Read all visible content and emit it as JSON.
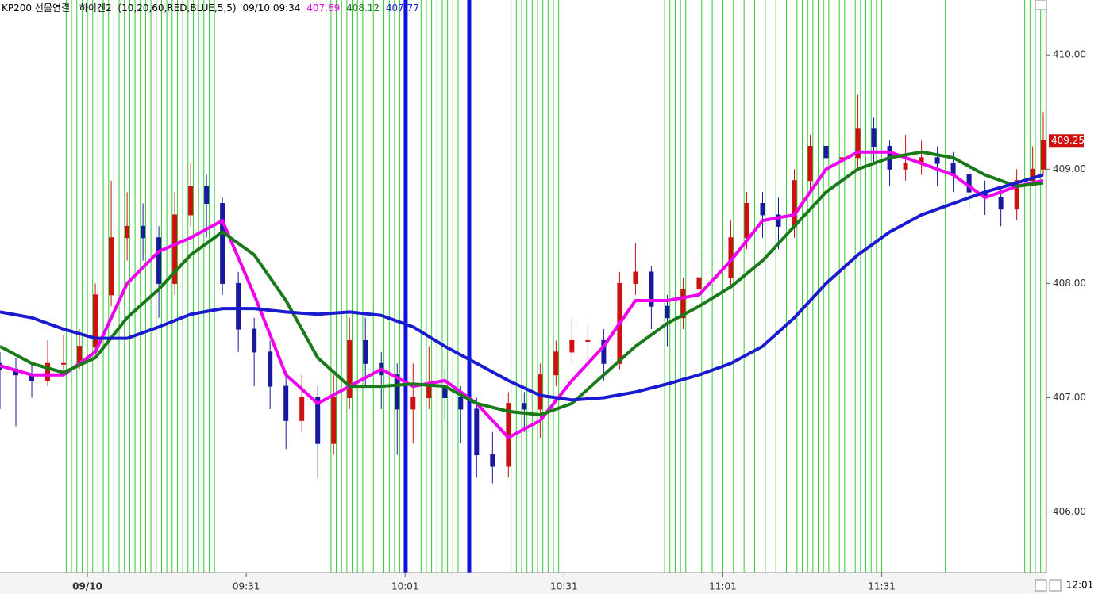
{
  "chart_data": {
    "type": "candlestick",
    "header": {
      "symbol": "KP200 선물연결",
      "indicator": "하이켄2",
      "params": "(10,20,60,RED,BLUE,5,5)",
      "datetime": "09/10 09:34"
    },
    "corner_time": "12:01",
    "up_color": "#d01010",
    "down_color": "#1818a0",
    "xlim": [
      0,
      197.6
    ],
    "ylim": [
      405.47,
      410.48
    ],
    "xticks": [
      {
        "value": 16.5,
        "label": "09/10"
      },
      {
        "value": 46.5,
        "label": "09:31"
      },
      {
        "value": 76.5,
        "label": "10:01"
      },
      {
        "value": 106.5,
        "label": "10:31"
      },
      {
        "value": 136.5,
        "label": "11:01"
      },
      {
        "value": 166.5,
        "label": "11:31"
      }
    ],
    "yticks": [
      {
        "value": 406,
        "label": "406.00"
      },
      {
        "value": 407,
        "label": "407.00"
      },
      {
        "value": 408,
        "label": "408.00"
      },
      {
        "value": 409,
        "label": "409.00"
      },
      {
        "value": 410,
        "label": "410.00"
      }
    ],
    "x": [
      0,
      3,
      6,
      9,
      12,
      15,
      18,
      21,
      24,
      27,
      30,
      33,
      36,
      39,
      42,
      45,
      48,
      51,
      54,
      57,
      60,
      63,
      66,
      69,
      72,
      75,
      78,
      81,
      84,
      87,
      90,
      93,
      96,
      99,
      102,
      105,
      108,
      111,
      114,
      117,
      120,
      123,
      126,
      129,
      132,
      135,
      138,
      141,
      144,
      147,
      150,
      153,
      156,
      159,
      162,
      165,
      168,
      171,
      174,
      177,
      180,
      183,
      186,
      189,
      192,
      195,
      197
    ],
    "open": [
      407.3,
      407.25,
      407.2,
      407.15,
      407.3,
      407.3,
      407.45,
      407.9,
      408.4,
      408.5,
      408.4,
      408.0,
      408.6,
      408.85,
      408.7,
      408.0,
      407.6,
      407.4,
      407.1,
      406.8,
      407.0,
      406.6,
      407.0,
      407.5,
      407.3,
      407.2,
      406.9,
      407.0,
      407.1,
      407.0,
      406.9,
      406.5,
      406.4,
      406.95,
      406.9,
      407.2,
      407.4,
      407.5,
      407.5,
      407.3,
      408.0,
      408.1,
      407.8,
      407.7,
      407.95,
      408.05,
      408.05,
      408.4,
      408.7,
      408.6,
      408.5,
      408.9,
      409.2,
      409.1,
      409.1,
      409.35,
      409.2,
      409.0,
      409.05,
      409.1,
      409.05,
      408.95,
      408.8,
      408.75,
      408.65,
      408.9,
      409.0
    ],
    "high": [
      407.4,
      407.35,
      407.3,
      407.5,
      407.55,
      407.6,
      408.0,
      408.9,
      408.8,
      408.7,
      408.5,
      408.8,
      409.05,
      408.95,
      408.75,
      408.1,
      407.7,
      407.5,
      407.2,
      407.2,
      407.1,
      407.2,
      407.7,
      407.7,
      407.4,
      407.3,
      407.3,
      407.45,
      407.25,
      407.1,
      407.0,
      406.7,
      407.05,
      407.05,
      407.3,
      407.5,
      407.7,
      407.65,
      407.6,
      408.1,
      408.35,
      408.15,
      407.9,
      408.05,
      408.25,
      408.2,
      408.55,
      408.8,
      408.8,
      408.75,
      409.0,
      409.3,
      409.35,
      409.3,
      409.65,
      409.45,
      409.25,
      409.3,
      409.25,
      409.2,
      409.15,
      409.05,
      408.9,
      408.85,
      409.0,
      409.2,
      409.5
    ],
    "low": [
      406.9,
      406.75,
      407.0,
      407.1,
      407.2,
      407.25,
      407.4,
      407.8,
      408.2,
      408.2,
      407.7,
      407.9,
      408.5,
      408.4,
      407.9,
      407.4,
      407.1,
      406.9,
      406.55,
      406.7,
      406.3,
      406.5,
      406.9,
      407.1,
      406.9,
      406.5,
      406.6,
      406.9,
      406.8,
      406.6,
      406.3,
      406.25,
      406.3,
      406.7,
      406.65,
      407.1,
      407.3,
      407.3,
      407.15,
      407.25,
      407.9,
      407.6,
      407.45,
      407.6,
      407.85,
      407.9,
      407.95,
      408.3,
      408.4,
      408.3,
      408.4,
      408.8,
      408.9,
      408.95,
      409.0,
      409.05,
      408.85,
      408.9,
      408.95,
      408.85,
      408.8,
      408.65,
      408.6,
      408.5,
      408.55,
      408.85,
      408.95
    ],
    "close": [
      407.25,
      407.2,
      407.15,
      407.3,
      407.3,
      407.45,
      407.9,
      408.4,
      408.5,
      408.4,
      408.0,
      408.6,
      408.85,
      408.7,
      408.0,
      407.6,
      407.4,
      407.1,
      406.8,
      407.0,
      406.6,
      407.0,
      407.5,
      407.3,
      407.2,
      406.9,
      407.0,
      407.1,
      407.0,
      406.9,
      406.5,
      406.4,
      406.95,
      406.9,
      407.2,
      407.4,
      407.5,
      407.5,
      407.3,
      408.0,
      408.1,
      407.8,
      407.7,
      407.95,
      408.05,
      408.05,
      408.4,
      408.7,
      408.6,
      408.5,
      408.9,
      409.2,
      409.1,
      409.1,
      409.35,
      409.2,
      409.0,
      409.05,
      409.1,
      409.05,
      408.95,
      408.8,
      408.75,
      408.65,
      408.9,
      409.0,
      409.25
    ],
    "series": [
      {
        "color": "#ee00ee",
        "current": 407.69,
        "x": [
          0,
          6,
          12,
          18,
          24,
          30,
          36,
          42,
          48,
          54,
          60,
          66,
          72,
          78,
          84,
          90,
          96,
          102,
          108,
          114,
          120,
          126,
          132,
          138,
          144,
          150,
          156,
          162,
          168,
          174,
          180,
          186,
          192,
          197
        ],
        "values": [
          407.28,
          407.2,
          407.2,
          407.4,
          408.0,
          408.28,
          408.4,
          408.55,
          407.9,
          407.2,
          406.95,
          407.1,
          407.25,
          407.1,
          407.15,
          406.95,
          406.65,
          406.8,
          407.15,
          407.45,
          407.85,
          407.85,
          407.9,
          408.2,
          408.55,
          408.6,
          409.0,
          409.15,
          409.15,
          409.05,
          408.95,
          408.75,
          408.85,
          408.9
        ]
      },
      {
        "color": "#1a7a1a",
        "current": 408.12,
        "x": [
          0,
          6,
          12,
          18,
          24,
          30,
          36,
          42,
          48,
          54,
          60,
          66,
          72,
          78,
          84,
          90,
          96,
          102,
          108,
          114,
          120,
          126,
          132,
          138,
          144,
          150,
          156,
          162,
          168,
          174,
          180,
          186,
          192,
          197
        ],
        "values": [
          407.45,
          407.3,
          407.22,
          407.35,
          407.7,
          407.95,
          408.25,
          408.45,
          408.25,
          407.85,
          407.35,
          407.1,
          407.1,
          407.12,
          407.1,
          406.95,
          406.88,
          406.85,
          406.95,
          407.2,
          407.45,
          407.65,
          407.8,
          407.97,
          408.2,
          408.5,
          408.8,
          409.0,
          409.1,
          409.15,
          409.1,
          408.95,
          408.85,
          408.88
        ]
      },
      {
        "color": "#1a1ad0",
        "current": 407.77,
        "x": [
          0,
          6,
          12,
          18,
          24,
          30,
          36,
          42,
          48,
          54,
          60,
          66,
          72,
          78,
          84,
          90,
          96,
          102,
          108,
          114,
          120,
          126,
          132,
          138,
          144,
          150,
          156,
          162,
          168,
          174,
          180,
          186,
          192,
          197
        ],
        "values": [
          407.75,
          407.7,
          407.6,
          407.52,
          407.52,
          407.62,
          407.73,
          407.78,
          407.78,
          407.75,
          407.73,
          407.75,
          407.72,
          407.62,
          407.45,
          407.3,
          407.15,
          407.02,
          406.98,
          407.0,
          407.05,
          407.12,
          407.2,
          407.3,
          407.45,
          407.7,
          408.0,
          408.25,
          408.45,
          408.6,
          408.7,
          408.8,
          408.88,
          408.95
        ]
      }
    ],
    "signal_lines": {
      "color": "#33cc33",
      "x": [
        12.5,
        13.5,
        14.5,
        15.5,
        16.5,
        17.5,
        18.5,
        19.5,
        20.5,
        21.5,
        22.5,
        23.5,
        24.5,
        25.5,
        26.5,
        27.5,
        28.5,
        29.5,
        30.5,
        31.5,
        32.5,
        33.5,
        34.5,
        35.5,
        36.5,
        37.5,
        38.5,
        39.5,
        40.5,
        62.5,
        63.5,
        64.5,
        65.5,
        66.5,
        67.5,
        68.5,
        69.5,
        70.5,
        72.5,
        73.5,
        74.5,
        75.5,
        79.5,
        80.5,
        81.5,
        82.5,
        83.5,
        84.5,
        85.5,
        86.5,
        96.5,
        97.5,
        98.5,
        99.5,
        100.5,
        101.5,
        102.5,
        103.5,
        104.5,
        105.5,
        125.5,
        126.5,
        127.5,
        128.5,
        129.5,
        132.5,
        134.5,
        136.5,
        138.5,
        140.5,
        142.5,
        144.5,
        146.5,
        148.5,
        150.5,
        151.5,
        152.5,
        153.5,
        154.5,
        155.5,
        156.5,
        157.5,
        158.5,
        159.5,
        160.5,
        161.5,
        162.5,
        163.5,
        164.5,
        165.5,
        166.5,
        178.5,
        193.5,
        194.5,
        195.5,
        196.5,
        197.5
      ]
    },
    "marker_lines": {
      "color": "#1010e0",
      "x": [
        76.6,
        88.6
      ]
    }
  }
}
